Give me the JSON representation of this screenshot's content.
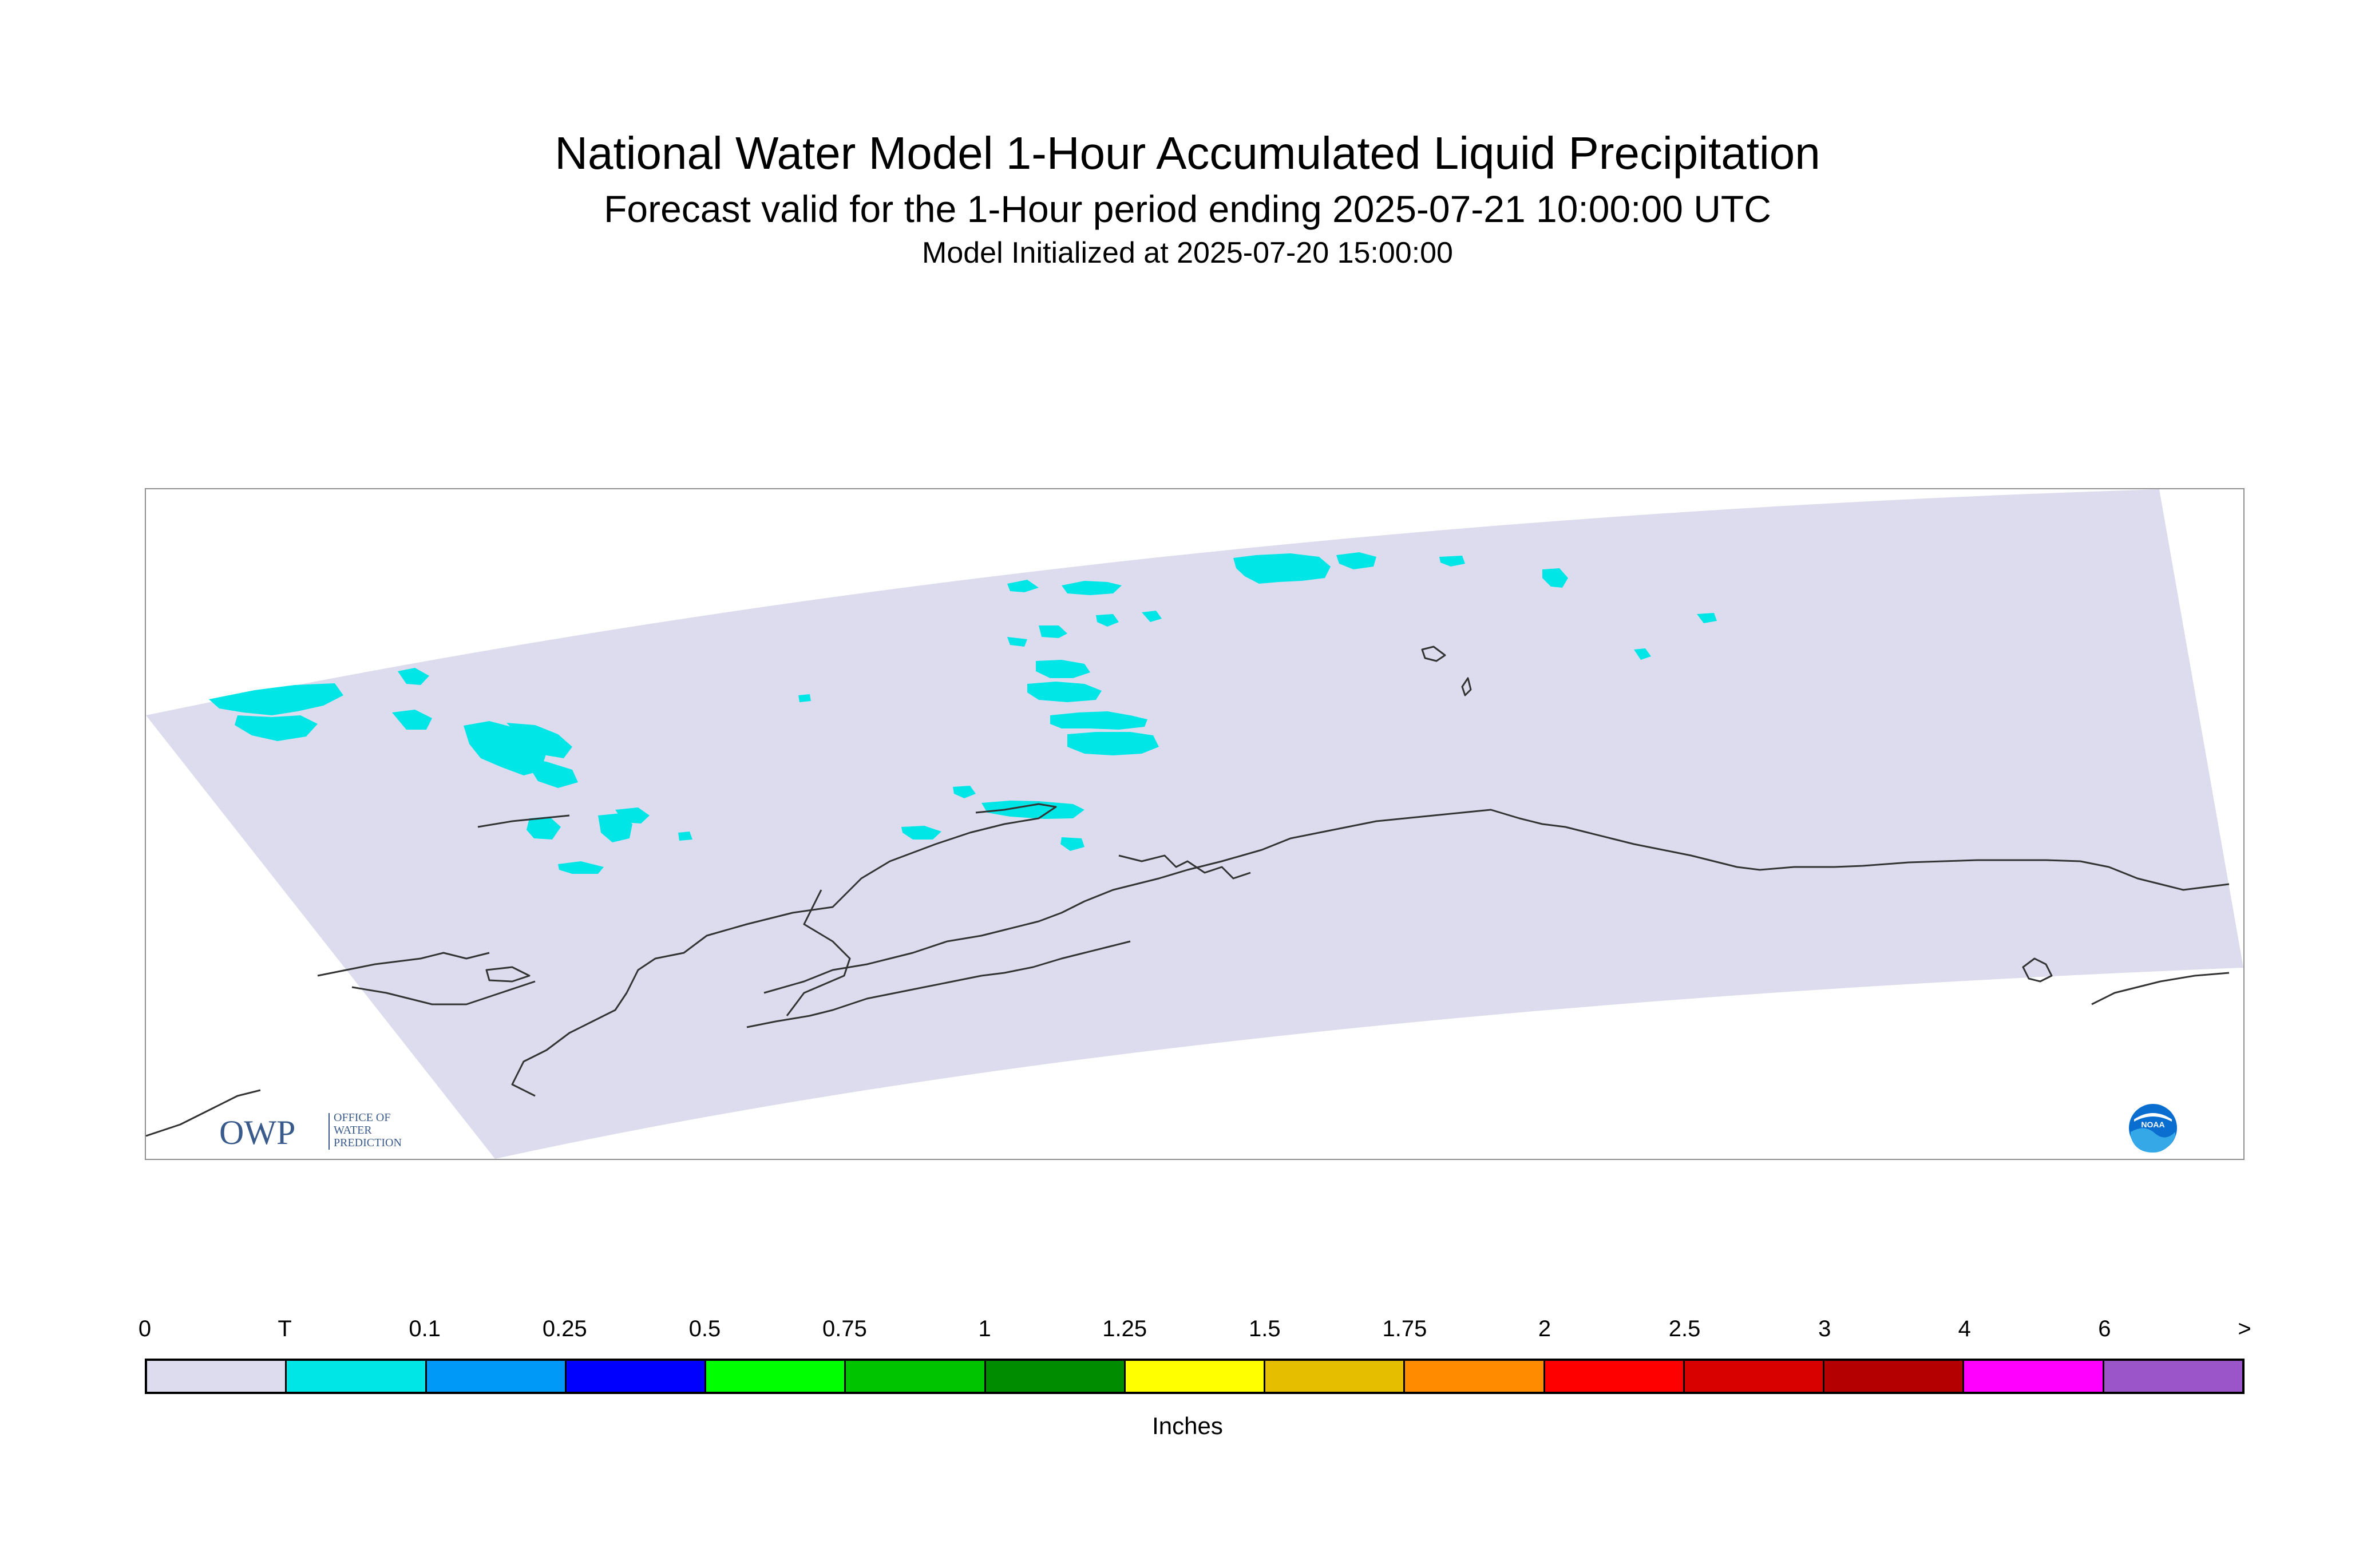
{
  "title": "National Water Model 1-Hour Accumulated Liquid Precipitation",
  "subtitle": "Forecast valid for the 1-Hour period ending 2025-07-21 10:00:00 UTC",
  "init_line": "Model Initialized at 2025-07-20 15:00:00",
  "logos": {
    "owp": {
      "mark": "OWP",
      "text": [
        "OFFICE OF",
        "WATER",
        "PREDICTION"
      ]
    },
    "noaa": {
      "mark": "NOAA"
    }
  },
  "colors": {
    "model_domain": "#dcdcee",
    "precip_trace": "#00e6e6",
    "coastline": "#333333"
  },
  "legend": {
    "unit": "Inches",
    "ticks": [
      "0",
      "T",
      "0.1",
      "0.25",
      "0.5",
      "0.75",
      "1",
      "1.25",
      "1.5",
      "1.75",
      "2",
      "2.5",
      "3",
      "4",
      "6",
      ">"
    ],
    "colors": [
      "#dcdcee",
      "#00e6e6",
      "#0099f7",
      "#0000ff",
      "#00ff00",
      "#00c400",
      "#008c00",
      "#ffff00",
      "#e6be00",
      "#ff8c00",
      "#ff0000",
      "#d90000",
      "#b40000",
      "#ff00ff",
      "#9b55c8"
    ]
  }
}
